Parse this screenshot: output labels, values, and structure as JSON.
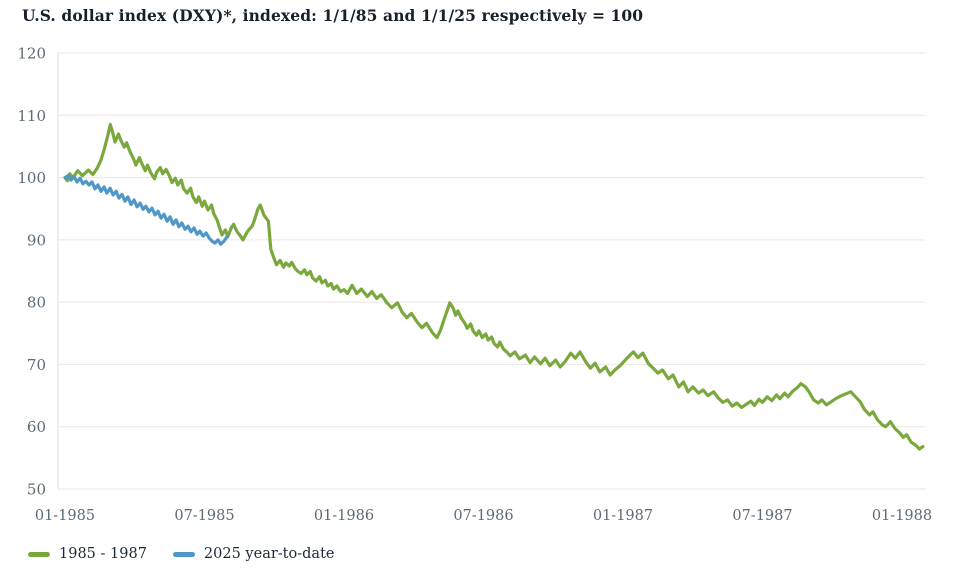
{
  "title": "U.S. dollar index (DXY)*, indexed: 1/1/85 and 1/1/25 respectively = 100",
  "colors": {
    "series_1985": "#7AA83C",
    "series_2025": "#4E97C8",
    "grid": "#e7e7e7",
    "axis_line": "#d9dde0",
    "tick_label": "#5b6b76",
    "title_text": "#16212b",
    "legend_text": "#1d2935",
    "background": "#ffffff"
  },
  "legend": {
    "items": [
      {
        "label": "1985 - 1987",
        "color": "#7AA83C"
      },
      {
        "label": "2025 year-to-date",
        "color": "#4E97C8"
      }
    ]
  },
  "chart_data": {
    "type": "line",
    "title": "U.S. dollar index (DXY)*, indexed: 1/1/85 and 1/1/25 respectively = 100",
    "xlabel": "",
    "ylabel": "",
    "x_unit": "months since index start (0 = 01-1985 / 01-2025)",
    "grid": "horizontal",
    "legend_position": "bottom-left",
    "x_axis": {
      "tick_positions": [
        0,
        6,
        12,
        18,
        24,
        30,
        36
      ],
      "tick_labels": [
        "01-1985",
        "07-1985",
        "01-1986",
        "07-1986",
        "01-1987",
        "07-1987",
        "01-1988"
      ],
      "range": [
        0,
        37
      ]
    },
    "y_axis": {
      "ticks": [
        50,
        60,
        70,
        80,
        90,
        100,
        110,
        120
      ],
      "range": [
        50,
        120
      ]
    },
    "series": [
      {
        "name": "1985 - 1987",
        "color": "#7AA83C",
        "points": [
          [
            0,
            100
          ],
          [
            0.1,
            99.5
          ],
          [
            0.2,
            100.6
          ],
          [
            0.35,
            100.0
          ],
          [
            0.55,
            101.1
          ],
          [
            0.75,
            100.3
          ],
          [
            1.0,
            101.2
          ],
          [
            1.2,
            100.5
          ],
          [
            1.4,
            101.6
          ],
          [
            1.55,
            102.8
          ],
          [
            1.7,
            104.7
          ],
          [
            1.85,
            106.9
          ],
          [
            1.95,
            108.5
          ],
          [
            2.05,
            107.2
          ],
          [
            2.15,
            105.7
          ],
          [
            2.3,
            107.0
          ],
          [
            2.4,
            106.0
          ],
          [
            2.55,
            104.9
          ],
          [
            2.65,
            105.6
          ],
          [
            2.8,
            104.1
          ],
          [
            2.95,
            103.0
          ],
          [
            3.05,
            102.0
          ],
          [
            3.2,
            103.2
          ],
          [
            3.3,
            102.3
          ],
          [
            3.45,
            101.1
          ],
          [
            3.55,
            102.0
          ],
          [
            3.7,
            100.7
          ],
          [
            3.85,
            99.8
          ],
          [
            3.95,
            100.9
          ],
          [
            4.1,
            101.6
          ],
          [
            4.2,
            100.6
          ],
          [
            4.35,
            101.3
          ],
          [
            4.5,
            100.2
          ],
          [
            4.6,
            99.2
          ],
          [
            4.75,
            99.9
          ],
          [
            4.85,
            98.8
          ],
          [
            5.0,
            99.6
          ],
          [
            5.1,
            98.2
          ],
          [
            5.25,
            97.5
          ],
          [
            5.4,
            98.3
          ],
          [
            5.5,
            96.9
          ],
          [
            5.65,
            96.0
          ],
          [
            5.75,
            96.9
          ],
          [
            5.9,
            95.4
          ],
          [
            6.0,
            96.2
          ],
          [
            6.15,
            94.8
          ],
          [
            6.3,
            95.6
          ],
          [
            6.4,
            94.2
          ],
          [
            6.55,
            93.1
          ],
          [
            6.65,
            91.9
          ],
          [
            6.75,
            90.8
          ],
          [
            6.9,
            91.6
          ],
          [
            7.0,
            90.5
          ],
          [
            7.15,
            91.9
          ],
          [
            7.25,
            92.5
          ],
          [
            7.4,
            91.3
          ],
          [
            7.55,
            90.6
          ],
          [
            7.65,
            90.0
          ],
          [
            7.8,
            91.0
          ],
          [
            7.9,
            91.6
          ],
          [
            8.05,
            92.2
          ],
          [
            8.15,
            93.2
          ],
          [
            8.3,
            95.0
          ],
          [
            8.4,
            95.6
          ],
          [
            8.55,
            94.0
          ],
          [
            8.65,
            93.5
          ],
          [
            8.75,
            93.0
          ],
          [
            8.85,
            88.5
          ],
          [
            9.0,
            86.9
          ],
          [
            9.1,
            86.0
          ],
          [
            9.25,
            86.7
          ],
          [
            9.4,
            85.6
          ],
          [
            9.5,
            86.3
          ],
          [
            9.65,
            85.8
          ],
          [
            9.75,
            86.4
          ],
          [
            9.9,
            85.4
          ],
          [
            10.0,
            85.0
          ],
          [
            10.15,
            84.6
          ],
          [
            10.3,
            85.2
          ],
          [
            10.4,
            84.4
          ],
          [
            10.55,
            84.9
          ],
          [
            10.65,
            83.9
          ],
          [
            10.8,
            83.4
          ],
          [
            10.95,
            84.1
          ],
          [
            11.05,
            83.1
          ],
          [
            11.2,
            83.5
          ],
          [
            11.3,
            82.6
          ],
          [
            11.45,
            83.0
          ],
          [
            11.55,
            82.1
          ],
          [
            11.7,
            82.6
          ],
          [
            11.85,
            81.7
          ],
          [
            12.0,
            82.0
          ],
          [
            12.15,
            81.4
          ],
          [
            12.35,
            82.7
          ],
          [
            12.55,
            81.4
          ],
          [
            12.75,
            82.1
          ],
          [
            13.0,
            80.9
          ],
          [
            13.2,
            81.7
          ],
          [
            13.4,
            80.6
          ],
          [
            13.6,
            81.2
          ],
          [
            13.85,
            79.9
          ],
          [
            14.05,
            79.1
          ],
          [
            14.3,
            79.9
          ],
          [
            14.5,
            78.4
          ],
          [
            14.7,
            77.5
          ],
          [
            14.9,
            78.2
          ],
          [
            15.15,
            76.8
          ],
          [
            15.35,
            75.9
          ],
          [
            15.55,
            76.6
          ],
          [
            15.8,
            75.1
          ],
          [
            16.0,
            74.3
          ],
          [
            16.15,
            75.5
          ],
          [
            16.3,
            77.2
          ],
          [
            16.45,
            78.8
          ],
          [
            16.55,
            79.9
          ],
          [
            16.7,
            79.0
          ],
          [
            16.8,
            77.9
          ],
          [
            16.9,
            78.6
          ],
          [
            17.05,
            77.4
          ],
          [
            17.2,
            76.6
          ],
          [
            17.3,
            75.8
          ],
          [
            17.45,
            76.5
          ],
          [
            17.55,
            75.4
          ],
          [
            17.7,
            74.7
          ],
          [
            17.8,
            75.4
          ],
          [
            17.95,
            74.3
          ],
          [
            18.1,
            74.9
          ],
          [
            18.2,
            73.9
          ],
          [
            18.35,
            74.4
          ],
          [
            18.45,
            73.4
          ],
          [
            18.6,
            72.8
          ],
          [
            18.7,
            73.6
          ],
          [
            18.85,
            72.5
          ],
          [
            19.0,
            72.0
          ],
          [
            19.15,
            71.4
          ],
          [
            19.35,
            72.0
          ],
          [
            19.55,
            70.9
          ],
          [
            19.8,
            71.5
          ],
          [
            20.0,
            70.3
          ],
          [
            20.2,
            71.2
          ],
          [
            20.45,
            70.1
          ],
          [
            20.65,
            71.0
          ],
          [
            20.85,
            69.8
          ],
          [
            21.1,
            70.7
          ],
          [
            21.3,
            69.6
          ],
          [
            21.5,
            70.4
          ],
          [
            21.75,
            71.8
          ],
          [
            21.95,
            71.0
          ],
          [
            22.15,
            72.0
          ],
          [
            22.4,
            70.4
          ],
          [
            22.6,
            69.4
          ],
          [
            22.8,
            70.2
          ],
          [
            23.0,
            68.8
          ],
          [
            23.25,
            69.6
          ],
          [
            23.45,
            68.3
          ],
          [
            23.65,
            69.1
          ],
          [
            23.9,
            69.9
          ],
          [
            24.1,
            70.7
          ],
          [
            24.3,
            71.5
          ],
          [
            24.45,
            72.0
          ],
          [
            24.65,
            71.1
          ],
          [
            24.85,
            71.8
          ],
          [
            25.1,
            70.1
          ],
          [
            25.3,
            69.4
          ],
          [
            25.5,
            68.6
          ],
          [
            25.7,
            69.1
          ],
          [
            25.95,
            67.7
          ],
          [
            26.15,
            68.3
          ],
          [
            26.4,
            66.4
          ],
          [
            26.6,
            67.2
          ],
          [
            26.8,
            65.6
          ],
          [
            27.0,
            66.4
          ],
          [
            27.25,
            65.4
          ],
          [
            27.45,
            65.9
          ],
          [
            27.65,
            65.0
          ],
          [
            27.9,
            65.6
          ],
          [
            28.1,
            64.6
          ],
          [
            28.3,
            63.9
          ],
          [
            28.5,
            64.3
          ],
          [
            28.7,
            63.3
          ],
          [
            28.9,
            63.8
          ],
          [
            29.1,
            63.1
          ],
          [
            29.3,
            63.6
          ],
          [
            29.5,
            64.1
          ],
          [
            29.65,
            63.4
          ],
          [
            29.85,
            64.4
          ],
          [
            30.0,
            63.9
          ],
          [
            30.2,
            64.8
          ],
          [
            30.4,
            64.2
          ],
          [
            30.6,
            65.1
          ],
          [
            30.75,
            64.5
          ],
          [
            30.95,
            65.4
          ],
          [
            31.1,
            64.8
          ],
          [
            31.3,
            65.7
          ],
          [
            31.5,
            66.3
          ],
          [
            31.65,
            66.9
          ],
          [
            31.85,
            66.4
          ],
          [
            32.0,
            65.6
          ],
          [
            32.2,
            64.3
          ],
          [
            32.4,
            63.8
          ],
          [
            32.55,
            64.3
          ],
          [
            32.75,
            63.5
          ],
          [
            32.95,
            64.0
          ],
          [
            33.15,
            64.5
          ],
          [
            33.4,
            65.0
          ],
          [
            33.6,
            65.3
          ],
          [
            33.8,
            65.6
          ],
          [
            34.0,
            64.8
          ],
          [
            34.2,
            64.0
          ],
          [
            34.4,
            62.7
          ],
          [
            34.6,
            61.9
          ],
          [
            34.75,
            62.4
          ],
          [
            34.95,
            61.1
          ],
          [
            35.15,
            60.3
          ],
          [
            35.3,
            60.0
          ],
          [
            35.5,
            60.8
          ],
          [
            35.7,
            59.7
          ],
          [
            35.9,
            59.0
          ],
          [
            36.05,
            58.3
          ],
          [
            36.2,
            58.7
          ],
          [
            36.4,
            57.5
          ],
          [
            36.6,
            57.0
          ],
          [
            36.75,
            56.4
          ],
          [
            36.9,
            56.8
          ]
        ]
      },
      {
        "name": "2025 year-to-date",
        "color": "#4E97C8",
        "points": [
          [
            0,
            100
          ],
          [
            0.13,
            100.3
          ],
          [
            0.26,
            99.6
          ],
          [
            0.39,
            100.1
          ],
          [
            0.52,
            99.3
          ],
          [
            0.65,
            99.9
          ],
          [
            0.77,
            99.0
          ],
          [
            0.9,
            99.4
          ],
          [
            1.03,
            98.8
          ],
          [
            1.16,
            99.3
          ],
          [
            1.29,
            98.2
          ],
          [
            1.42,
            98.8
          ],
          [
            1.55,
            97.8
          ],
          [
            1.68,
            98.5
          ],
          [
            1.8,
            97.5
          ],
          [
            1.94,
            98.3
          ],
          [
            2.07,
            97.2
          ],
          [
            2.2,
            97.8
          ],
          [
            2.32,
            96.7
          ],
          [
            2.45,
            97.3
          ],
          [
            2.58,
            96.2
          ],
          [
            2.7,
            96.9
          ],
          [
            2.84,
            95.7
          ],
          [
            2.97,
            96.4
          ],
          [
            3.1,
            95.3
          ],
          [
            3.23,
            95.9
          ],
          [
            3.36,
            94.9
          ],
          [
            3.48,
            95.4
          ],
          [
            3.61,
            94.5
          ],
          [
            3.74,
            95.1
          ],
          [
            3.87,
            94.0
          ],
          [
            4.0,
            94.6
          ],
          [
            4.13,
            93.5
          ],
          [
            4.26,
            94.1
          ],
          [
            4.39,
            93.0
          ],
          [
            4.52,
            93.7
          ],
          [
            4.65,
            92.5
          ],
          [
            4.78,
            93.2
          ],
          [
            4.9,
            92.1
          ],
          [
            5.03,
            92.7
          ],
          [
            5.16,
            91.7
          ],
          [
            5.29,
            92.2
          ],
          [
            5.42,
            91.3
          ],
          [
            5.55,
            91.9
          ],
          [
            5.68,
            90.9
          ],
          [
            5.8,
            91.4
          ],
          [
            5.94,
            90.6
          ],
          [
            6.07,
            91.1
          ],
          [
            6.2,
            90.3
          ],
          [
            6.32,
            89.8
          ],
          [
            6.45,
            89.5
          ],
          [
            6.58,
            90.0
          ],
          [
            6.7,
            89.3
          ],
          [
            6.84,
            89.8
          ],
          [
            6.97,
            90.5
          ]
        ]
      }
    ]
  }
}
